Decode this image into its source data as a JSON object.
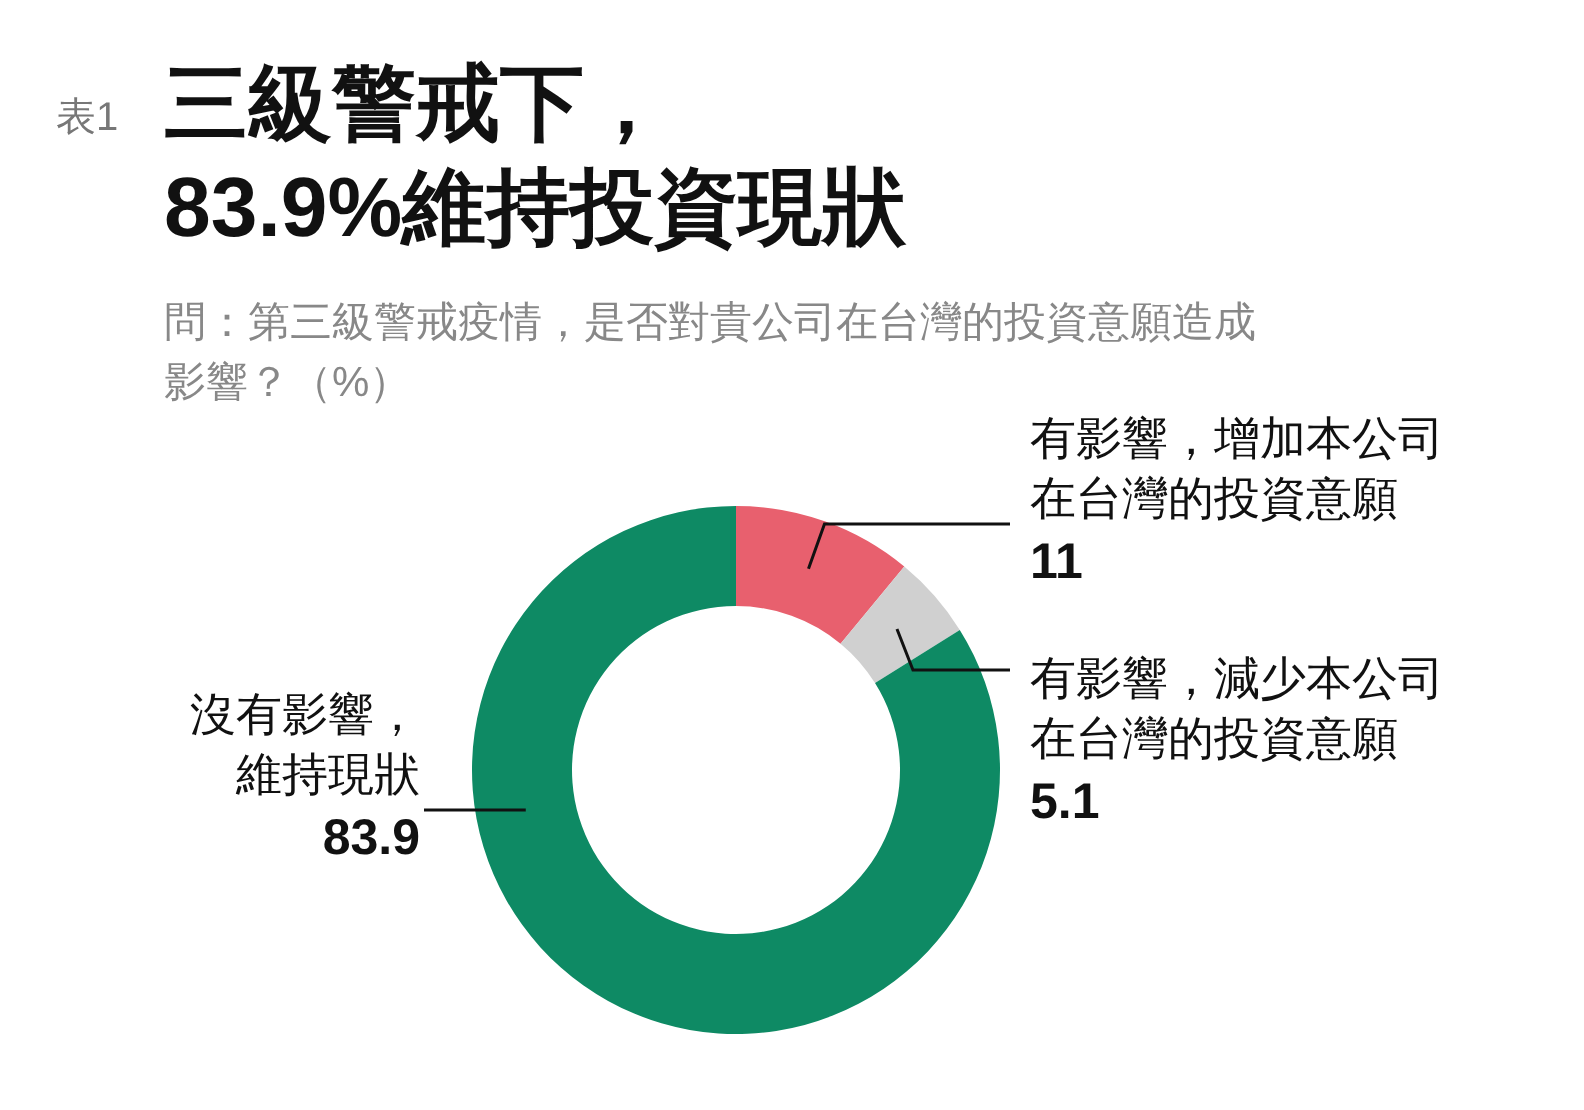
{
  "chart_data": {
    "type": "donut",
    "title": "三級警戒下，83.9%維持投資現狀",
    "subtitle": "問：第三級警戒疫情，是否對貴公司在台灣的投資意願造成影響？（%）",
    "annotations": [
      "表1"
    ],
    "categories": [
      "有影響，增加本公司在台灣的投資意願",
      "有影響，減少本公司在台灣的投資意願",
      "沒有影響，維持現狀"
    ],
    "values": [
      11,
      5.1,
      83.9
    ],
    "colors": [
      "#e8606e",
      "#d0d0d0",
      "#0e8a64"
    ],
    "data_labels": true
  }
}
